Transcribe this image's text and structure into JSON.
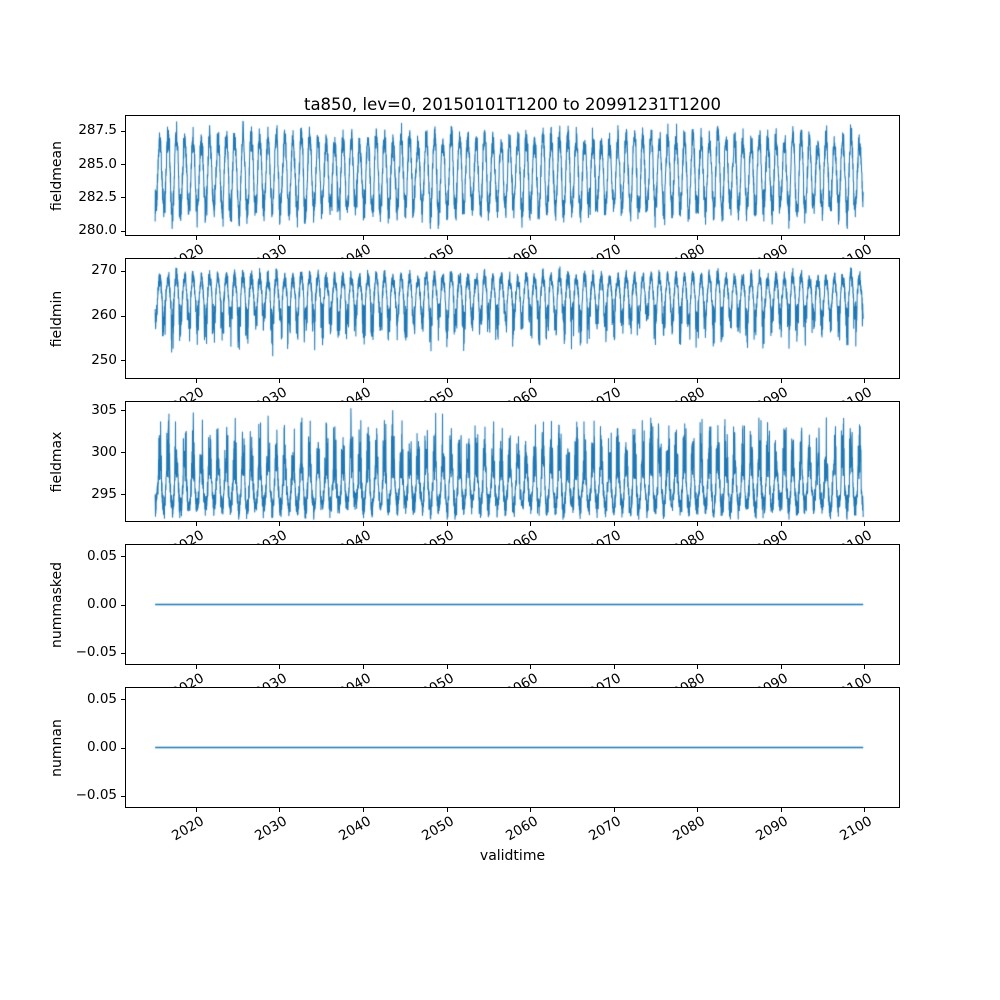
{
  "figure": {
    "title": "ta850, lev=0, 20150101T1200 to 20991231T1200",
    "xlabel": "validtime",
    "background": "#ffffff",
    "line_color": "#1f77b4",
    "xlim": [
      2011.5,
      2104.3
    ],
    "x_data_range": [
      2015.0,
      2100.0
    ],
    "xticks": [
      2020,
      2030,
      2040,
      2050,
      2060,
      2070,
      2080,
      2090,
      2100
    ],
    "xtick_labels": [
      "2020",
      "2030",
      "2040",
      "2050",
      "2060",
      "2070",
      "2080",
      "2090",
      "2100"
    ],
    "samples_per_year": 52
  },
  "chart_data": [
    {
      "type": "line",
      "name": "fieldmean",
      "ylabel": "fieldmean",
      "ylim": [
        279.6,
        288.7
      ],
      "yticks": [
        280.0,
        282.5,
        285.0,
        287.5
      ],
      "ytick_labels": [
        "280.0",
        "282.5",
        "285.0",
        "287.5"
      ],
      "model": {
        "type": "seasonal_oscillation",
        "base": 284.35,
        "amplitude": 2.25,
        "amp_jitter": 0.35,
        "noise": 0.75,
        "summer_extra": 1.1,
        "winter_extra": 1.8,
        "clip_min": 280.1,
        "clip_max": 288.4,
        "period_years": 1
      }
    },
    {
      "type": "line",
      "name": "fieldmin",
      "ylabel": "fieldmin",
      "ylim": [
        245.8,
        272.9
      ],
      "yticks": [
        250,
        260,
        270
      ],
      "ytick_labels": [
        "250",
        "260",
        "270"
      ],
      "model": {
        "type": "seasonal_oscillation",
        "base": 264.8,
        "amplitude": 3.6,
        "amp_jitter": 0.3,
        "noise": 1.6,
        "summer_extra": 1.2,
        "winter_extra": 9.5,
        "clip_min": 246.5,
        "clip_max": 271.8,
        "period_years": 1
      }
    },
    {
      "type": "line",
      "name": "fieldmax",
      "ylabel": "fieldmax",
      "ylim": [
        291.7,
        306.1
      ],
      "yticks": [
        295,
        300,
        305
      ],
      "ytick_labels": [
        "295",
        "300",
        "305"
      ],
      "model": {
        "type": "seasonal_oscillation",
        "base": 295.6,
        "amplitude": 2.0,
        "amp_jitter": 0.3,
        "noise": 1.25,
        "summer_extra": 7.5,
        "winter_extra": 0.9,
        "clip_min": 291.9,
        "clip_max": 305.6,
        "period_years": 1
      }
    },
    {
      "type": "line",
      "name": "nummasked",
      "ylabel": "nummasked",
      "ylim": [
        -0.0625,
        0.0625
      ],
      "yticks": [
        0.05,
        0.0,
        -0.05
      ],
      "ytick_labels": [
        "0.05",
        "0.00",
        "−0.05"
      ],
      "model": {
        "type": "constant",
        "value": 0.0
      }
    },
    {
      "type": "line",
      "name": "numnan",
      "ylabel": "numnan",
      "ylim": [
        -0.0625,
        0.0625
      ],
      "yticks": [
        0.05,
        0.0,
        -0.05
      ],
      "ytick_labels": [
        "0.05",
        "0.00",
        "−0.05"
      ],
      "model": {
        "type": "constant",
        "value": 0.0
      }
    }
  ]
}
